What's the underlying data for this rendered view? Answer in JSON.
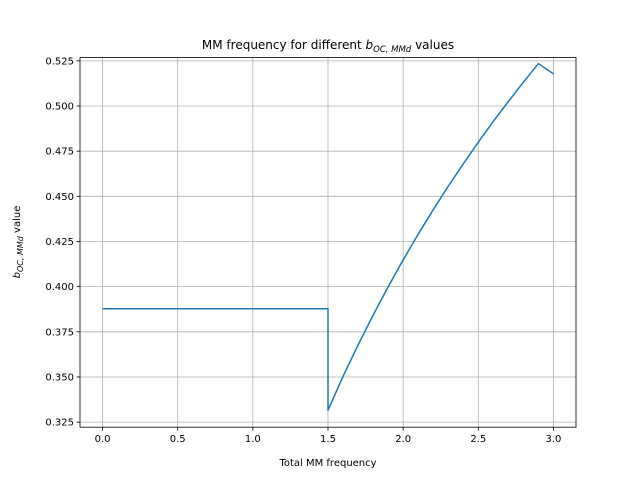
{
  "chart_data": {
    "type": "line",
    "title": {
      "prefix": "MM frequency for different ",
      "symbol": "b",
      "subscript": "OC, MMd",
      "suffix": " values"
    },
    "xlabel": "Total MM frequency",
    "ylabel": {
      "symbol": "b",
      "subscript": "OC, MMd",
      "suffix": " value"
    },
    "xlim": [
      -0.15,
      3.15
    ],
    "ylim": [
      0.3222,
      0.5268
    ],
    "xticks": [
      0.0,
      0.5,
      1.0,
      1.5,
      2.0,
      2.5,
      3.0
    ],
    "xtick_labels": [
      "0.0",
      "0.5",
      "1.0",
      "1.5",
      "2.0",
      "2.5",
      "3.0"
    ],
    "yticks": [
      0.325,
      0.35,
      0.375,
      0.4,
      0.425,
      0.45,
      0.475,
      0.5,
      0.525
    ],
    "ytick_labels": [
      "0.325",
      "0.350",
      "0.375",
      "0.400",
      "0.425",
      "0.450",
      "0.475",
      "0.500",
      "0.525"
    ],
    "grid": true,
    "series": [
      {
        "color": "#1f77b4",
        "x": [
          0.0,
          0.5,
          1.0,
          1.5,
          1.5,
          1.6,
          1.7,
          1.8,
          1.9,
          2.0,
          2.1,
          2.2,
          2.3,
          2.4,
          2.5,
          2.6,
          2.7,
          2.8,
          2.9,
          3.0
        ],
        "y": [
          0.3878,
          0.3878,
          0.3878,
          0.3878,
          0.3316,
          0.3503,
          0.3677,
          0.3842,
          0.3999,
          0.4148,
          0.429,
          0.4426,
          0.4556,
          0.468,
          0.48,
          0.4915,
          0.5025,
          0.5132,
          0.5235,
          0.5178
        ]
      }
    ]
  }
}
